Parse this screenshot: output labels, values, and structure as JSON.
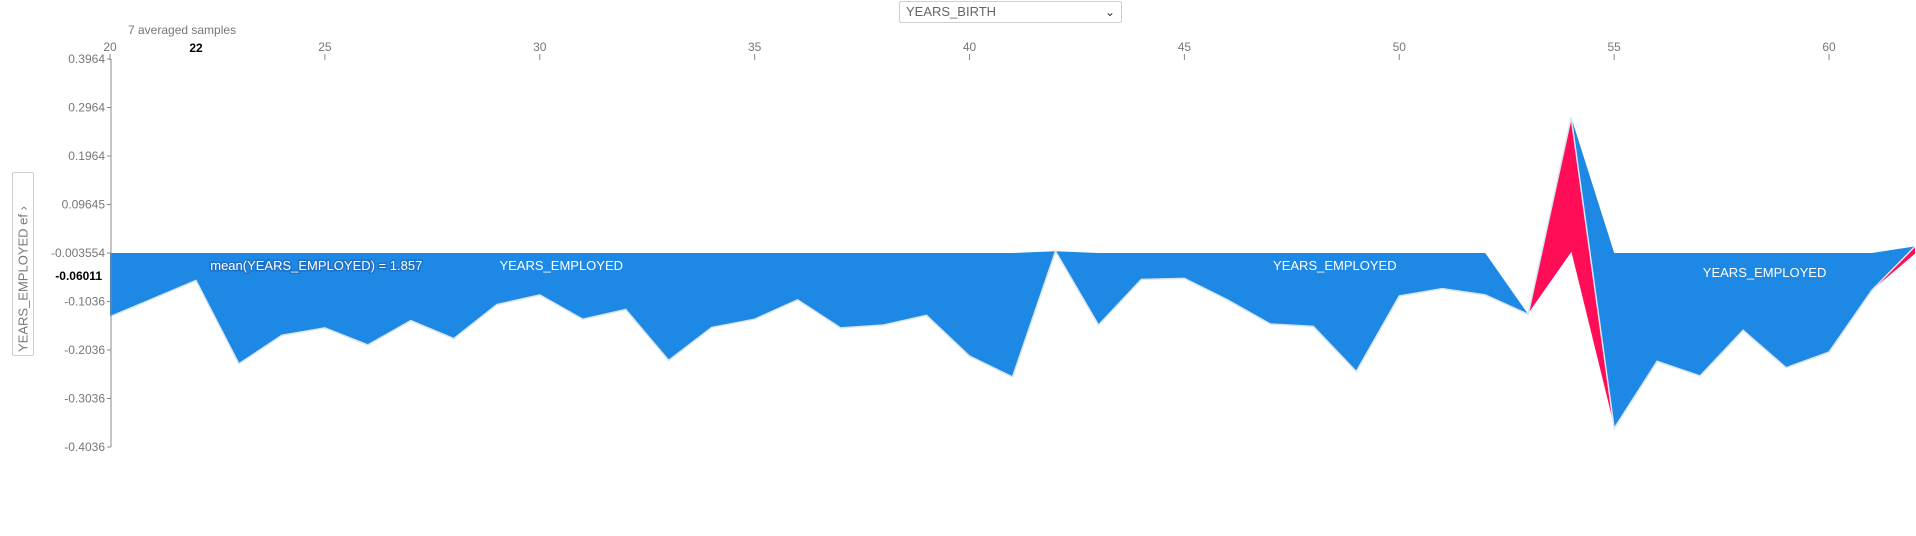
{
  "header": {
    "samples_label": "7 averaged samples",
    "x_feature_select": "YEARS_BIRTH",
    "y_feature_select": "YEARS_EMPLOYED ef"
  },
  "colors": {
    "negative": "#1e88e5",
    "positive": "#ff0d57",
    "axis": "#888888"
  },
  "chart_data": {
    "type": "area",
    "xlim": [
      20,
      62
    ],
    "ylim": [
      -0.4036,
      0.3964
    ],
    "base_value": -0.003554,
    "x_ticks": [
      20,
      25,
      30,
      35,
      40,
      45,
      50,
      55,
      60
    ],
    "y_ticks": [
      "0.3964",
      "0.2964",
      "0.1964",
      "0.09645",
      "-0.003554",
      "-0.1036",
      "-0.2036",
      "-0.3036",
      "-0.4036"
    ],
    "hover_x": "22",
    "hover_y": "-0.06011",
    "x": [
      20,
      22,
      23,
      24,
      25,
      26,
      27,
      28,
      29,
      30,
      31,
      32,
      33,
      34,
      35,
      36,
      37,
      38,
      39,
      40,
      41,
      42,
      43,
      44,
      45,
      46,
      47,
      48,
      49,
      50,
      51,
      52,
      53,
      54,
      55,
      56,
      57,
      58,
      59,
      60,
      61,
      62
    ],
    "values": [
      -0.135,
      -0.06,
      -0.232,
      -0.173,
      -0.158,
      -0.193,
      -0.143,
      -0.18,
      -0.11,
      -0.09,
      -0.14,
      -0.12,
      -0.225,
      -0.157,
      -0.14,
      -0.1,
      -0.158,
      -0.152,
      -0.132,
      -0.216,
      -0.259,
      0.0,
      -0.152,
      -0.058,
      -0.056,
      -0.1,
      -0.15,
      -0.155,
      -0.248,
      -0.092,
      -0.077,
      -0.09,
      -0.13,
      0.276,
      -0.365,
      -0.227,
      -0.257,
      -0.163,
      -0.24,
      -0.208,
      -0.08,
      0.01
    ],
    "series": [
      {
        "name": "YEARS_EMPLOYED",
        "sign": "negative",
        "base_line": [
          -0.003554,
          -0.003554,
          -0.003554,
          -0.003554,
          -0.003554,
          -0.003554,
          -0.003554,
          -0.003554,
          -0.003554,
          -0.003554,
          -0.003554,
          -0.003554,
          -0.003554,
          -0.003554,
          -0.003554,
          -0.003554,
          -0.003554,
          -0.003554,
          -0.003554,
          -0.003554,
          -0.003554,
          0.0,
          -0.003554,
          -0.003554,
          -0.003554,
          -0.003554,
          -0.003554,
          -0.003554,
          -0.003554,
          -0.003554,
          -0.003554,
          -0.003554,
          -0.13,
          0.276,
          -0.003554,
          -0.003554,
          -0.003554,
          -0.003554,
          -0.003554,
          -0.003554,
          -0.003554,
          0.01
        ]
      },
      {
        "name": "YEARS_EMPLOYED",
        "sign": "positive",
        "segment": [
          53,
          54,
          55
        ],
        "upper": [
          -0.13,
          0.276,
          -0.365
        ],
        "lower": [
          -0.13,
          -0.003554,
          -0.365
        ]
      }
    ],
    "annotations": [
      {
        "text": "mean(YEARS_EMPLOYED) = 1.857",
        "x": 24.8,
        "y": -0.03,
        "style": "halo"
      },
      {
        "text": "YEARS_EMPLOYED",
        "x": 30.5,
        "y": -0.03,
        "style": "plain"
      },
      {
        "text": "YEARS_EMPLOYED",
        "x": 48.5,
        "y": -0.03,
        "style": "plain"
      },
      {
        "text": "YEARS_EMPLOYED",
        "x": 58.5,
        "y": -0.045,
        "style": "plain"
      }
    ]
  }
}
